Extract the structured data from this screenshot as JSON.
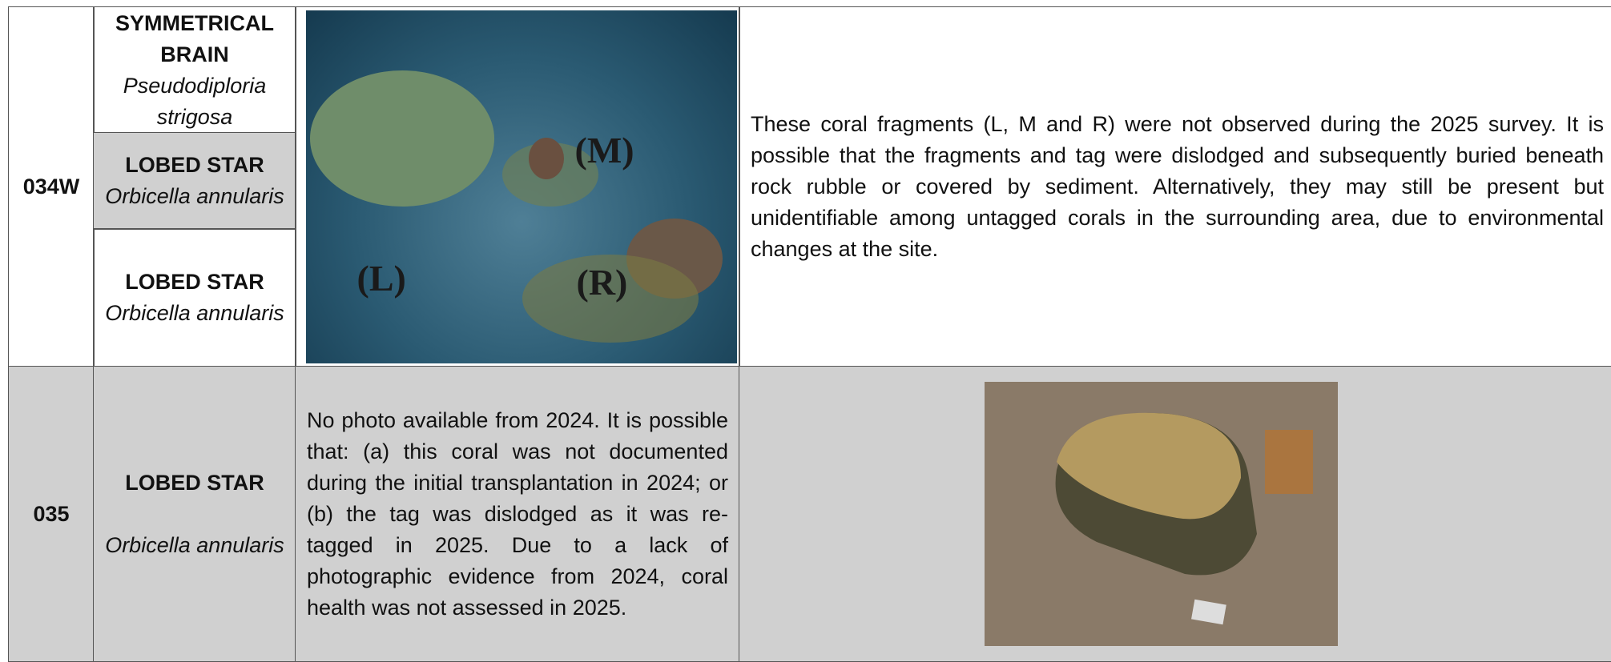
{
  "rows": [
    {
      "id": "034W",
      "corals": [
        {
          "common": "SYMMETRICAL BRAIN",
          "scientific": "Pseudodiploria strigosa"
        },
        {
          "common": "LOBED STAR",
          "scientific": "Orbicella annularis"
        },
        {
          "common": "LOBED STAR",
          "scientific": "Orbicella annularis"
        }
      ],
      "photo_labels": [
        "(M)",
        "(L)",
        "(R)"
      ],
      "note": "These coral fragments (L, M and R) were not observed during the 2025 survey. It is possible that the fragments and tag were dislodged and subsequently buried beneath rock rubble or covered by sediment. Alternatively, they may still be present but unidentifiable among untagged corals in the surrounding area, due to environmental changes at the site."
    },
    {
      "id": "035",
      "corals": [
        {
          "common": "LOBED STAR",
          "scientific": "Orbicella annularis"
        }
      ],
      "note": "No photo available from 2024.  It is possible that: (a) this coral was not documented during the initial transplantation in 2024; or (b) the tag was dislodged as it was re-tagged in 2025. Due to a lack of photographic evidence from 2024, coral health was not assessed in 2025."
    }
  ]
}
